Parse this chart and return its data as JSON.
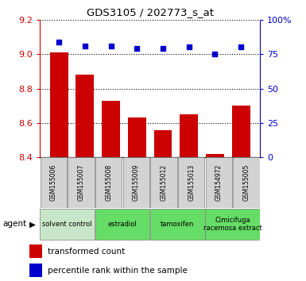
{
  "title": "GDS3105 / 202773_s_at",
  "samples": [
    "GSM155006",
    "GSM155007",
    "GSM155008",
    "GSM155009",
    "GSM155012",
    "GSM155013",
    "GSM154972",
    "GSM155005"
  ],
  "bar_values": [
    9.01,
    8.88,
    8.73,
    8.63,
    8.56,
    8.65,
    8.42,
    8.7
  ],
  "dot_values": [
    84,
    81,
    81,
    79,
    79,
    80,
    75,
    80
  ],
  "ylim": [
    8.4,
    9.2
  ],
  "y2lim": [
    0,
    100
  ],
  "yticks": [
    8.4,
    8.6,
    8.8,
    9.0,
    9.2
  ],
  "y2ticks": [
    0,
    25,
    50,
    75,
    100
  ],
  "y2ticklabels": [
    "0",
    "25",
    "50",
    "75",
    "100%"
  ],
  "bar_color": "#cc0000",
  "dot_color": "#0000cc",
  "bg_color": "#ffffff",
  "plot_bg": "#ffffff",
  "sample_box_color": "#d3d3d3",
  "grid_color": "#000000",
  "agent_groups": [
    {
      "label": "solvent control",
      "start": 0,
      "end": 2,
      "color": "#c8e6c8"
    },
    {
      "label": "estradiol",
      "start": 2,
      "end": 4,
      "color": "#66dd66"
    },
    {
      "label": "tamoxifen",
      "start": 4,
      "end": 6,
      "color": "#66dd66"
    },
    {
      "label": "Cimicifuga\nracemosa extract",
      "start": 6,
      "end": 8,
      "color": "#66dd66"
    }
  ],
  "legend_bar_label": "transformed count",
  "legend_dot_label": "percentile rank within the sample",
  "agent_label": "agent",
  "title_color": "#000000",
  "tick_color_left": "#cc0000",
  "tick_color_right": "#0000cc"
}
